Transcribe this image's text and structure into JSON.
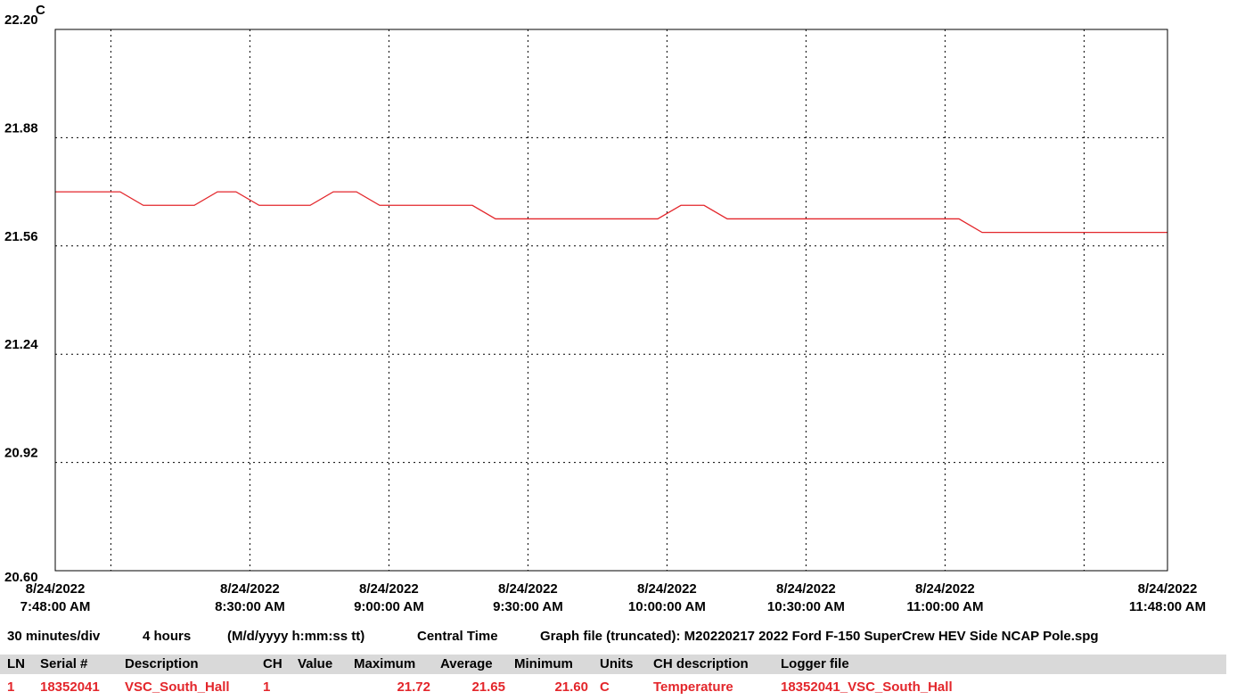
{
  "chart_data": {
    "type": "line",
    "y_label": "C",
    "ylim": [
      20.6,
      22.2
    ],
    "yticks": [
      {
        "value": 20.6,
        "label": "20.60"
      },
      20.92,
      21.24,
      21.56,
      21.88,
      {
        "value": 22.2,
        "label": "22.20"
      }
    ],
    "xlim": [
      "8/24/2022 7:48:00 AM",
      "8/24/2022 11:48:00 AM"
    ],
    "xticks": [
      {
        "date": "8/24/2022",
        "time": "7:48:00 AM"
      },
      {
        "date": "8/24/2022",
        "time": "8:30:00 AM"
      },
      {
        "date": "8/24/2022",
        "time": "9:00:00 AM"
      },
      {
        "date": "8/24/2022",
        "time": "9:30:00 AM"
      },
      {
        "date": "8/24/2022",
        "time": "10:00:00 AM"
      },
      {
        "date": "8/24/2022",
        "time": "10:30:00 AM"
      },
      {
        "date": "8/24/2022",
        "time": "11:00:00 AM"
      },
      {
        "date": "8/24/2022",
        "time": "11:48:00 AM"
      }
    ],
    "xgrid": [
      "8/24/2022 8:00:00 AM",
      "8/24/2022 8:30:00 AM",
      "8/24/2022 9:00:00 AM",
      "8/24/2022 9:30:00 AM",
      "8/24/2022 10:00:00 AM",
      "8/24/2022 10:30:00 AM",
      "8/24/2022 11:00:00 AM",
      "8/24/2022 11:30:00 AM"
    ],
    "grid": true,
    "x": [
      "8/24/2022 7:48:00 AM",
      "8/24/2022 8:02:00 AM",
      "8/24/2022 8:07:00 AM",
      "8/24/2022 8:18:00 AM",
      "8/24/2022 8:23:00 AM",
      "8/24/2022 8:27:00 AM",
      "8/24/2022 8:32:00 AM",
      "8/24/2022 8:43:00 AM",
      "8/24/2022 8:48:00 AM",
      "8/24/2022 8:53:00 AM",
      "8/24/2022 8:58:00 AM",
      "8/24/2022 9:18:00 AM",
      "8/24/2022 9:23:00 AM",
      "8/24/2022 9:58:00 AM",
      "8/24/2022 10:03:00 AM",
      "8/24/2022 10:08:00 AM",
      "8/24/2022 10:13:00 AM",
      "8/24/2022 11:03:00 AM",
      "8/24/2022 11:08:00 AM",
      "8/24/2022 11:48:00 AM"
    ],
    "series": [
      {
        "color": "#e3262b",
        "values": [
          21.72,
          21.72,
          21.68,
          21.68,
          21.72,
          21.72,
          21.68,
          21.68,
          21.72,
          21.72,
          21.68,
          21.68,
          21.64,
          21.64,
          21.68,
          21.68,
          21.64,
          21.64,
          21.6,
          21.6
        ]
      }
    ]
  },
  "footer": [
    "30 minutes/div",
    "4 hours",
    "(M/d/yyyy h:mm:ss tt)",
    "Central Time",
    "Graph file (truncated): M20220217 2022 Ford F-150 SuperCrew HEV Side NCAP Pole.spg"
  ],
  "table": {
    "header": [
      "LN",
      "Serial #",
      "Description",
      "CH",
      "Value",
      "Maximum",
      "Average",
      "Minimum",
      "Units",
      "CH description",
      "Logger file"
    ],
    "row": {
      "ln": "1",
      "serial": "18352041",
      "description": "VSC_South_Hall",
      "ch": "1",
      "maximum": "21.72",
      "average": "21.65",
      "minimum": "21.60",
      "units": "C",
      "ch_description": "Temperature",
      "logger_file": "18352041_VSC_South_Hall"
    }
  }
}
